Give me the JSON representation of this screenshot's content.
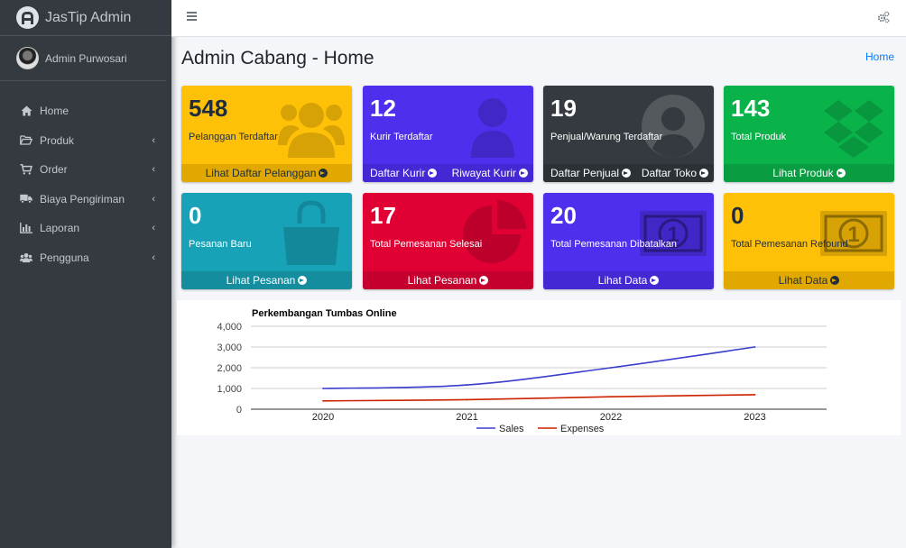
{
  "brand": {
    "name": "JasTip Admin"
  },
  "user": {
    "name": "Admin Purwosari"
  },
  "nav": [
    {
      "label": "Home",
      "icon": "home-icon",
      "chevron": false
    },
    {
      "label": "Produk",
      "icon": "folder-open-icon",
      "chevron": true
    },
    {
      "label": "Order",
      "icon": "cart-icon",
      "chevron": true
    },
    {
      "label": "Biaya Pengiriman",
      "icon": "truck-icon",
      "chevron": true
    },
    {
      "label": "Laporan",
      "icon": "bar-chart-icon",
      "chevron": true
    },
    {
      "label": "Pengguna",
      "icon": "users-icon",
      "chevron": true
    }
  ],
  "chevron_glyph": "‹",
  "page": {
    "title": "Admin Cabang - Home",
    "breadcrumb": "Home"
  },
  "cards": [
    {
      "number": "548",
      "label": "Pelanggan Terdaftar",
      "links": [
        "Lihat Daftar Pelanggan"
      ],
      "color": "#ffc107",
      "footer_color": "#e0a800",
      "icon": "users-icon"
    },
    {
      "number": "12",
      "label": "Kurir Terdaftar",
      "links": [
        "Daftar Kurir",
        "Riwayat Kurir"
      ],
      "color": "#4f2fee",
      "footer_color": "#4428d3",
      "icon": "user-icon"
    },
    {
      "number": "19",
      "label": "Penjual/Warung Terdaftar",
      "links": [
        "Daftar Penjual",
        "Daftar Toko"
      ],
      "color": "#343a40",
      "footer_color": "#2c3136",
      "icon": "user-circle-icon"
    },
    {
      "number": "143",
      "label": "Total Produk",
      "links": [
        "Lihat Produk"
      ],
      "color": "#0ab34a",
      "footer_color": "#099c41",
      "icon": "dropbox-icon"
    },
    {
      "number": "0",
      "label": "Pesanan Baru",
      "links": [
        "Lihat Pesanan"
      ],
      "color": "#17a2b8",
      "footer_color": "#148d9f",
      "icon": "shopping-bag-icon"
    },
    {
      "number": "17",
      "label": "Total Pemesanan Selesai",
      "links": [
        "Lihat Pesanan"
      ],
      "color": "#e00034",
      "footer_color": "#c6002e",
      "icon": "pie-chart-icon"
    },
    {
      "number": "20",
      "label": "Total Pemesanan Dibatalkan",
      "links": [
        "Lihat Data"
      ],
      "color": "#4f2fee",
      "footer_color": "#4428d3",
      "icon": "money-bill-icon"
    },
    {
      "number": "0",
      "label": "Total Pemesanan Refound",
      "links": [
        "Lihat Data"
      ],
      "color": "#ffc107",
      "footer_color": "#e0a800",
      "icon": "money-bill-icon"
    }
  ],
  "chart_data": {
    "type": "line",
    "title": "Perkembangan Tumbas Online",
    "categories": [
      "2020",
      "2021",
      "2022",
      "2023"
    ],
    "series": [
      {
        "name": "Sales",
        "values": [
          1000,
          1170,
          2000,
          3000
        ],
        "color": "#3c3cce"
      },
      {
        "name": "Expenses",
        "values": [
          400,
          460,
          600,
          700
        ],
        "color": "#cc2200"
      }
    ],
    "y_ticks": [
      "4,000",
      "3,000",
      "2,000",
      "1,000",
      "0"
    ],
    "ylim": [
      0,
      4000
    ],
    "grid": true,
    "legend_position": "bottom"
  }
}
